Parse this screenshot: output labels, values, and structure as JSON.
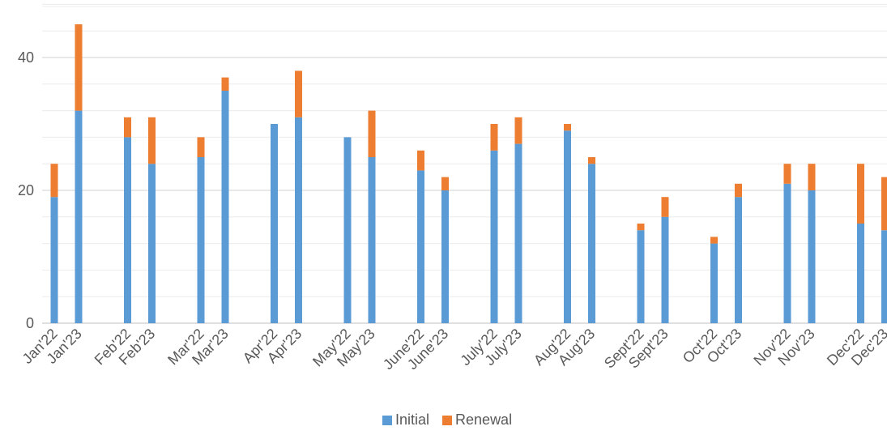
{
  "chart_data": {
    "type": "bar",
    "stacked": true,
    "categories": [
      "Jan'22",
      "Jan'23",
      "Feb'22",
      "Feb'23",
      "Mar'22",
      "Mar'23",
      "Apr'22",
      "Apr'23",
      "May'22",
      "May'23",
      "June'22",
      "June'23",
      "July'22",
      "July'23",
      "Aug'22",
      "Aug'23",
      "Sept'22",
      "Sept'23",
      "Oct'22",
      "Oct'23",
      "Nov'22",
      "Nov'23",
      "Dec'22",
      "Dec'23"
    ],
    "series": [
      {
        "name": "Initial",
        "color": "#5B9BD5",
        "values": [
          19,
          32,
          28,
          24,
          25,
          35,
          30,
          31,
          28,
          25,
          23,
          20,
          26,
          27,
          29,
          24,
          14,
          16,
          12,
          19,
          21,
          20,
          15,
          14
        ]
      },
      {
        "name": "Renewal",
        "color": "#ED7D31",
        "values": [
          5,
          13,
          3,
          7,
          3,
          2,
          0,
          7,
          0,
          7,
          3,
          2,
          4,
          4,
          1,
          1,
          1,
          3,
          1,
          2,
          3,
          4,
          9,
          8
        ]
      }
    ],
    "yticks": [
      "0",
      "20",
      "40"
    ],
    "ylim": [
      0,
      48
    ],
    "grid": true,
    "minor_grid_step": 4,
    "legend": "bottom"
  }
}
